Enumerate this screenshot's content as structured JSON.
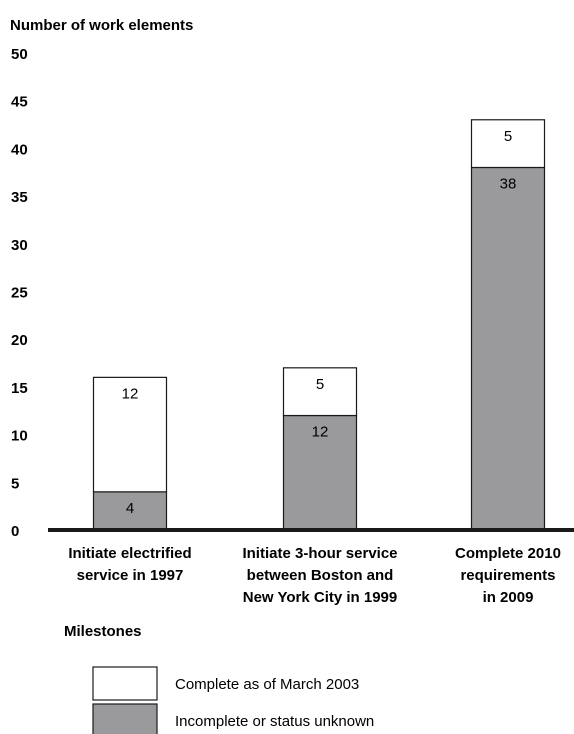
{
  "chart_data": {
    "type": "bar",
    "stacked": true,
    "ylabel": "Number of work elements",
    "xlabel": "Milestones",
    "ylim": [
      0,
      50
    ],
    "yticks": [
      0,
      5,
      10,
      15,
      20,
      25,
      30,
      35,
      40,
      45,
      50
    ],
    "categories": [
      [
        "Initiate electrified",
        "service in 1997"
      ],
      [
        "Initiate 3-hour service",
        "between Boston and",
        "New York City in 1999"
      ],
      [
        "Complete 2010",
        "requirements",
        "in 2009"
      ]
    ],
    "series": [
      {
        "name": "Incomplete or status unknown",
        "color": "#9a9a9c",
        "values": [
          4,
          12,
          38
        ]
      },
      {
        "name": "Complete as of March 2003",
        "color": "#ffffff",
        "values": [
          12,
          5,
          5
        ]
      }
    ],
    "legend_position": "bottom",
    "grid": false
  }
}
